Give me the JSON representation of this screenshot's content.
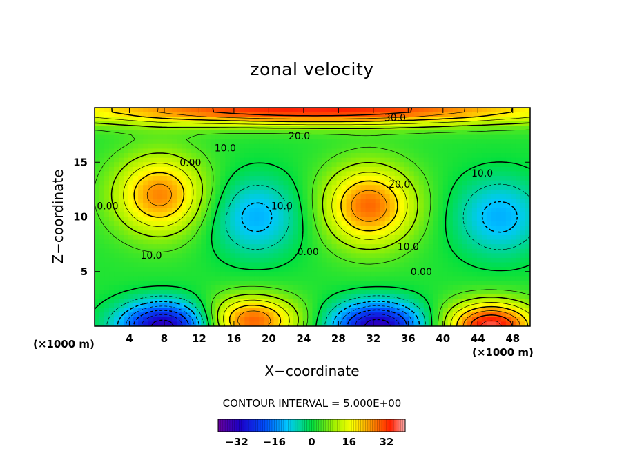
{
  "chart_data": {
    "type": "heatmap",
    "title": "zonal velocity",
    "xlabel": "X−coordinate",
    "ylabel": "Z−coordinate",
    "x_unit": "(×1000 m)",
    "xlim": [
      0,
      50
    ],
    "ylim": [
      0,
      20
    ],
    "x_ticks": [
      4,
      8,
      12,
      16,
      20,
      24,
      28,
      32,
      36,
      40,
      44,
      48
    ],
    "y_ticks": [
      5,
      10,
      15
    ],
    "contour_interval_text": "CONTOUR INTERVAL = 5.000E+00",
    "contour_interval": 5.0,
    "colorbar": {
      "range": [
        -40,
        40
      ],
      "ticks": [
        -32,
        -16,
        0,
        16,
        32
      ],
      "colormap": "rainbow"
    },
    "contour_labels": [
      {
        "text": "30.0",
        "x": 34.5,
        "z": 19.1
      },
      {
        "text": "20.0",
        "x": 23.5,
        "z": 17.4
      },
      {
        "text": "10.0",
        "x": 15.0,
        "z": 16.3
      },
      {
        "text": "0.00",
        "x": 11.0,
        "z": 15.0
      },
      {
        "text": "20.0",
        "x": 35.0,
        "z": 13.0
      },
      {
        "text": "10.0",
        "x": 21.5,
        "z": 11.0
      },
      {
        "text": "0.00",
        "x": 1.5,
        "z": 11.0
      },
      {
        "text": "10.0",
        "x": 44.5,
        "z": 14.0
      },
      {
        "text": "0.00",
        "x": 24.5,
        "z": 6.8
      },
      {
        "text": "10.0",
        "x": 6.5,
        "z": 6.5
      },
      {
        "text": "10.0",
        "x": 36.0,
        "z": 7.3
      },
      {
        "text": "0.00",
        "x": 37.5,
        "z": 5.0
      }
    ],
    "field_features": [
      {
        "kind": "jet",
        "x": 25,
        "z": 19.8,
        "value": 33
      },
      {
        "kind": "max",
        "x": 7.5,
        "z": 12.0,
        "value": 25
      },
      {
        "kind": "max",
        "x": 31.5,
        "z": 11.0,
        "value": 27
      },
      {
        "kind": "min",
        "x": 18.5,
        "z": 10.0,
        "value": -14
      },
      {
        "kind": "min",
        "x": 46.5,
        "z": 10.0,
        "value": -14
      },
      {
        "kind": "max",
        "x": 18.0,
        "z": 0.5,
        "value": 28
      },
      {
        "kind": "max",
        "x": 45.5,
        "z": 0.0,
        "value": 35
      },
      {
        "kind": "min",
        "x": 8.0,
        "z": 0.0,
        "value": -35
      },
      {
        "kind": "min",
        "x": 32.5,
        "z": 0.0,
        "value": -35
      }
    ]
  }
}
